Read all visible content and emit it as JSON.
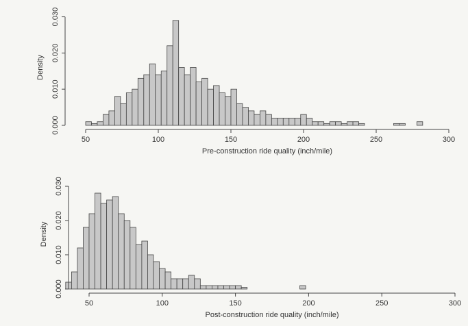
{
  "chart_data": [
    {
      "type": "histogram",
      "x_label": "Pre-construction ride quality (inch/mile)",
      "y_label": "Density",
      "bins": [
        50,
        54,
        58,
        62,
        66,
        70,
        74,
        78,
        82,
        86,
        90,
        94,
        98,
        102,
        106,
        110,
        114,
        118,
        122,
        126,
        130,
        134,
        138,
        142,
        146,
        150,
        154,
        158,
        162,
        166,
        170,
        174,
        178,
        182,
        186,
        190,
        194,
        198,
        202,
        206,
        210,
        214,
        218,
        222,
        226,
        230,
        234,
        238,
        242,
        246,
        250,
        254,
        258,
        262,
        266,
        270,
        274,
        278,
        282
      ],
      "values": [
        0.001,
        0.0005,
        0.001,
        0.003,
        0.004,
        0.008,
        0.006,
        0.009,
        0.01,
        0.013,
        0.014,
        0.017,
        0.014,
        0.015,
        0.022,
        0.029,
        0.016,
        0.014,
        0.016,
        0.012,
        0.013,
        0.01,
        0.011,
        0.009,
        0.008,
        0.01,
        0.006,
        0.005,
        0.004,
        0.003,
        0.004,
        0.003,
        0.002,
        0.002,
        0.002,
        0.002,
        0.002,
        0.003,
        0.002,
        0.001,
        0.001,
        0.0005,
        0.001,
        0.001,
        0.0005,
        0.001,
        0.001,
        0.0005,
        0,
        0,
        0,
        0,
        0,
        0.0005,
        0.0005,
        0,
        0,
        0.001
      ],
      "color": "#c8c8c8",
      "xlim": [
        50,
        300
      ],
      "xticks": [
        50,
        100,
        150,
        200,
        250,
        300
      ],
      "ylim": [
        0,
        0.032
      ],
      "yticks": [
        {
          "value": 0,
          "label": "0.000"
        },
        {
          "value": 0.01,
          "label": "0.010"
        },
        {
          "value": 0.02,
          "label": "0.020"
        },
        {
          "value": 0.03,
          "label": "0.030"
        }
      ]
    },
    {
      "type": "histogram",
      "x_label": "Post-construction ride quality (inch/mile)",
      "y_label": "Density",
      "bins": [
        34,
        38,
        42,
        46,
        50,
        54,
        58,
        62,
        66,
        70,
        74,
        78,
        82,
        86,
        90,
        94,
        98,
        102,
        106,
        110,
        114,
        118,
        122,
        126,
        130,
        134,
        138,
        142,
        146,
        150,
        154,
        158,
        162,
        166,
        170,
        174,
        178,
        182,
        186,
        190,
        194,
        198
      ],
      "values": [
        0.002,
        0.005,
        0.012,
        0.018,
        0.022,
        0.028,
        0.025,
        0.026,
        0.027,
        0.022,
        0.02,
        0.018,
        0.013,
        0.014,
        0.01,
        0.008,
        0.006,
        0.005,
        0.003,
        0.003,
        0.003,
        0.004,
        0.003,
        0.001,
        0.001,
        0.001,
        0.001,
        0.001,
        0.001,
        0.001,
        0.0005,
        0,
        0,
        0,
        0,
        0,
        0,
        0,
        0,
        0,
        0.001
      ],
      "color": "#c8c8c8",
      "xlim": [
        50,
        300
      ],
      "xticks": [
        50,
        100,
        150,
        200,
        250,
        300
      ],
      "ylim": [
        0,
        0.032
      ],
      "yticks": [
        {
          "value": 0,
          "label": "0.000"
        },
        {
          "value": 0.01,
          "label": "0.010"
        },
        {
          "value": 0.02,
          "label": "0.020"
        },
        {
          "value": 0.03,
          "label": "0.030"
        }
      ]
    }
  ]
}
